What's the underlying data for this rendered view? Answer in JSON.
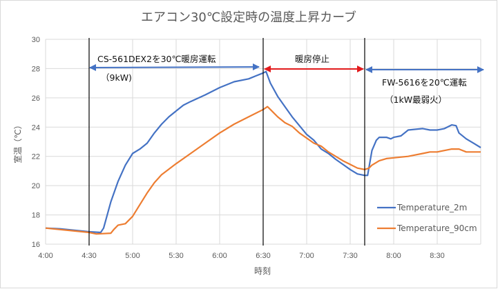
{
  "chart_data": {
    "type": "line",
    "title": "エアコン30℃設定時の温度上昇カーブ",
    "xlabel": "時刻",
    "ylabel": "室温（℃）",
    "xlim": [
      "4:00",
      "9:00"
    ],
    "ylim": [
      16,
      30
    ],
    "grid": true,
    "legend_position": "bottom-right",
    "x_ticks": [
      "4:00",
      "4:30",
      "5:00",
      "5:30",
      "6:00",
      "6:30",
      "7:00",
      "7:30",
      "8:00",
      "8:30"
    ],
    "y_ticks": [
      16,
      18,
      20,
      22,
      24,
      26,
      28,
      30
    ],
    "series": [
      {
        "name": "Temperature_2m",
        "color": "#4472C4",
        "points": [
          [
            "4:00",
            17.1
          ],
          [
            "4:10",
            17.05
          ],
          [
            "4:20",
            16.95
          ],
          [
            "4:30",
            16.85
          ],
          [
            "4:38",
            16.8
          ],
          [
            "4:40",
            17.1
          ],
          [
            "4:45",
            18.9
          ],
          [
            "4:50",
            20.3
          ],
          [
            "4:55",
            21.4
          ],
          [
            "5:00",
            22.2
          ],
          [
            "5:05",
            22.5
          ],
          [
            "5:10",
            22.9
          ],
          [
            "5:15",
            23.6
          ],
          [
            "5:20",
            24.2
          ],
          [
            "5:25",
            24.7
          ],
          [
            "5:30",
            25.1
          ],
          [
            "5:35",
            25.5
          ],
          [
            "5:40",
            25.75
          ],
          [
            "5:50",
            26.2
          ],
          [
            "6:00",
            26.7
          ],
          [
            "6:10",
            27.1
          ],
          [
            "6:20",
            27.3
          ],
          [
            "6:25",
            27.5
          ],
          [
            "6:30",
            27.7
          ],
          [
            "6:32",
            27.8
          ],
          [
            "6:35",
            27.0
          ],
          [
            "6:40",
            26.1
          ],
          [
            "6:45",
            25.4
          ],
          [
            "6:50",
            24.7
          ],
          [
            "6:55",
            24.1
          ],
          [
            "7:00",
            23.5
          ],
          [
            "7:05",
            23.1
          ],
          [
            "7:10",
            22.5
          ],
          [
            "7:15",
            22.2
          ],
          [
            "7:20",
            21.8
          ],
          [
            "7:25",
            21.45
          ],
          [
            "7:30",
            21.1
          ],
          [
            "7:35",
            20.8
          ],
          [
            "7:40",
            20.7
          ],
          [
            "7:42",
            20.7
          ],
          [
            "7:45",
            22.4
          ],
          [
            "7:48",
            23.1
          ],
          [
            "7:50",
            23.3
          ],
          [
            "7:55",
            23.3
          ],
          [
            "7:58",
            23.2
          ],
          [
            "8:00",
            23.3
          ],
          [
            "8:05",
            23.4
          ],
          [
            "8:10",
            23.8
          ],
          [
            "8:20",
            23.9
          ],
          [
            "8:25",
            23.8
          ],
          [
            "8:30",
            23.8
          ],
          [
            "8:35",
            23.9
          ],
          [
            "8:40",
            24.15
          ],
          [
            "8:43",
            24.1
          ],
          [
            "8:45",
            23.6
          ],
          [
            "8:50",
            23.2
          ],
          [
            "8:55",
            22.9
          ],
          [
            "9:00",
            22.6
          ]
        ]
      },
      {
        "name": "Temperature_90cm",
        "color": "#ED7D31",
        "points": [
          [
            "4:00",
            17.1
          ],
          [
            "4:10",
            17.0
          ],
          [
            "4:20",
            16.9
          ],
          [
            "4:30",
            16.8
          ],
          [
            "4:35",
            16.7
          ],
          [
            "4:45",
            16.75
          ],
          [
            "4:47",
            17.0
          ],
          [
            "4:50",
            17.3
          ],
          [
            "4:55",
            17.4
          ],
          [
            "5:00",
            17.9
          ],
          [
            "5:05",
            18.7
          ],
          [
            "5:10",
            19.5
          ],
          [
            "5:15",
            20.2
          ],
          [
            "5:20",
            20.75
          ],
          [
            "5:30",
            21.5
          ],
          [
            "5:40",
            22.2
          ],
          [
            "5:50",
            22.9
          ],
          [
            "6:00",
            23.6
          ],
          [
            "6:10",
            24.2
          ],
          [
            "6:20",
            24.7
          ],
          [
            "6:30",
            25.2
          ],
          [
            "6:33",
            25.4
          ],
          [
            "6:35",
            25.2
          ],
          [
            "6:40",
            24.7
          ],
          [
            "6:45",
            24.3
          ],
          [
            "6:50",
            24.05
          ],
          [
            "6:55",
            23.6
          ],
          [
            "7:00",
            23.25
          ],
          [
            "7:05",
            22.9
          ],
          [
            "7:10",
            22.7
          ],
          [
            "7:15",
            22.3
          ],
          [
            "7:20",
            22.0
          ],
          [
            "7:25",
            21.7
          ],
          [
            "7:30",
            21.45
          ],
          [
            "7:35",
            21.2
          ],
          [
            "7:40",
            21.1
          ],
          [
            "7:43",
            21.2
          ],
          [
            "7:45",
            21.4
          ],
          [
            "7:50",
            21.7
          ],
          [
            "7:55",
            21.85
          ],
          [
            "8:00",
            21.9
          ],
          [
            "8:10",
            22.0
          ],
          [
            "8:15",
            22.1
          ],
          [
            "8:20",
            22.2
          ],
          [
            "8:25",
            22.3
          ],
          [
            "8:30",
            22.3
          ],
          [
            "8:40",
            22.5
          ],
          [
            "8:45",
            22.5
          ],
          [
            "8:50",
            22.3
          ],
          [
            "9:00",
            22.3
          ]
        ]
      }
    ],
    "annotations": {
      "phase1": {
        "label": "CS-561DEX2を30℃暖房運転",
        "sub": "（9kW)",
        "start": "4:30",
        "end": "6:30",
        "color": "#4472C4"
      },
      "phase2": {
        "label": "暖房停止",
        "start": "6:30",
        "end": "7:40",
        "color": "#E31A1C"
      },
      "phase3": {
        "label": "FW-5616を20℃運転",
        "sub": "（1kW最弱火）",
        "start": "7:40",
        "end": "9:00",
        "color": "#4472C4"
      }
    }
  }
}
